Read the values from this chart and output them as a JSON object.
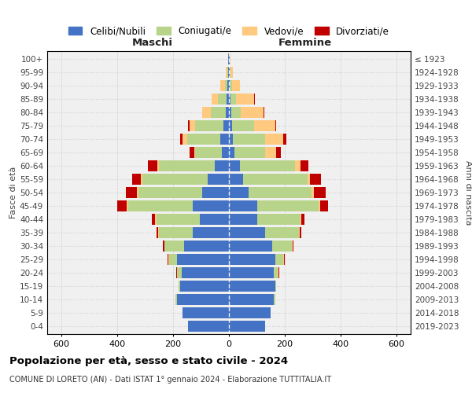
{
  "age_groups": [
    "0-4",
    "5-9",
    "10-14",
    "15-19",
    "20-24",
    "25-29",
    "30-34",
    "35-39",
    "40-44",
    "45-49",
    "50-54",
    "55-59",
    "60-64",
    "65-69",
    "70-74",
    "75-79",
    "80-84",
    "85-89",
    "90-94",
    "95-99",
    "100+"
  ],
  "birth_years": [
    "2019-2023",
    "2014-2018",
    "2009-2013",
    "2004-2008",
    "1999-2003",
    "1994-1998",
    "1989-1993",
    "1984-1988",
    "1979-1983",
    "1974-1978",
    "1969-1973",
    "1964-1968",
    "1959-1963",
    "1954-1958",
    "1949-1953",
    "1944-1948",
    "1939-1943",
    "1934-1938",
    "1929-1933",
    "1924-1928",
    "≤ 1923"
  ],
  "colors": {
    "celibi": "#4472c4",
    "coniugati": "#b8d48b",
    "vedovi": "#ffc97f",
    "divorziati": "#c00000"
  },
  "males": {
    "celibi": [
      145,
      165,
      185,
      175,
      170,
      185,
      160,
      130,
      105,
      130,
      95,
      75,
      50,
      25,
      30,
      20,
      10,
      8,
      5,
      3,
      2
    ],
    "coniugati": [
      0,
      0,
      5,
      5,
      15,
      30,
      70,
      120,
      155,
      230,
      230,
      235,
      200,
      95,
      120,
      100,
      55,
      30,
      8,
      2,
      0
    ],
    "vedovi": [
      0,
      0,
      0,
      0,
      2,
      2,
      2,
      3,
      5,
      5,
      5,
      5,
      5,
      5,
      15,
      20,
      30,
      25,
      18,
      5,
      2
    ],
    "divorziati": [
      0,
      0,
      0,
      0,
      2,
      2,
      3,
      5,
      10,
      35,
      40,
      30,
      35,
      15,
      10,
      5,
      0,
      0,
      0,
      0,
      0
    ]
  },
  "females": {
    "nubili": [
      130,
      150,
      160,
      165,
      160,
      165,
      155,
      130,
      100,
      100,
      70,
      50,
      40,
      20,
      15,
      10,
      8,
      6,
      4,
      3,
      2
    ],
    "coniugate": [
      0,
      0,
      5,
      5,
      15,
      30,
      70,
      120,
      155,
      220,
      225,
      230,
      195,
      110,
      115,
      80,
      35,
      20,
      6,
      2,
      0
    ],
    "vedove": [
      0,
      0,
      0,
      0,
      2,
      2,
      2,
      3,
      5,
      5,
      10,
      10,
      20,
      40,
      65,
      75,
      80,
      65,
      30,
      10,
      3
    ],
    "divorziate": [
      0,
      0,
      0,
      0,
      2,
      2,
      3,
      5,
      10,
      30,
      40,
      40,
      30,
      15,
      10,
      5,
      3,
      2,
      0,
      0,
      0
    ]
  },
  "title": "Popolazione per età, sesso e stato civile - 2024",
  "subtitle": "COMUNE DI LORETO (AN) - Dati ISTAT 1° gennaio 2024 - Elaborazione TUTTITALIA.IT",
  "xlabel_left": "Maschi",
  "xlabel_right": "Femmine",
  "ylabel_left": "Fasce di età",
  "ylabel_right": "Anni di nascita",
  "xlim": 650,
  "xticks": [
    -600,
    -400,
    -200,
    0,
    200,
    400,
    600
  ],
  "legend_labels": [
    "Celibi/Nubili",
    "Coniugati/e",
    "Vedovi/e",
    "Divorziati/e"
  ],
  "bg_color": "#ffffff",
  "plot_bg_color": "#f0f0f0",
  "grid_color": "#d0d0d0"
}
